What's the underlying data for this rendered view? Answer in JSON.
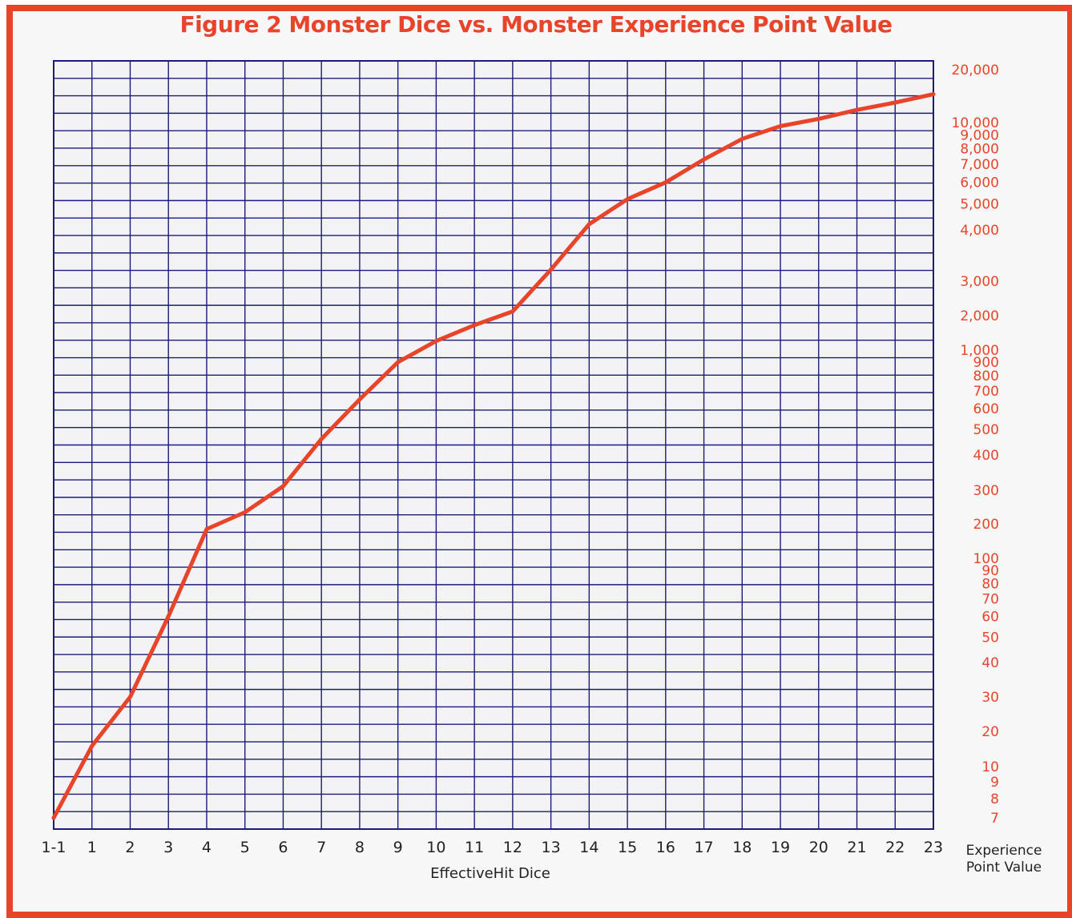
{
  "chart_data": {
    "type": "line",
    "title": "Figure 2 Monster Dice vs. Monster Experience Point Value",
    "xlabel": "EffectiveHit Dice",
    "ylabel": "Experience Point Value",
    "x_categories": [
      "1-1",
      "1",
      "2",
      "3",
      "4",
      "5",
      "6",
      "7",
      "8",
      "9",
      "10",
      "11",
      "12",
      "13",
      "14",
      "15",
      "16",
      "17",
      "18",
      "19",
      "20",
      "21",
      "22",
      "23"
    ],
    "y_ticks": [
      "7",
      "8",
      "9",
      "10",
      "20",
      "30",
      "40",
      "50",
      "60",
      "70",
      "80",
      "90",
      "100",
      "200",
      "300",
      "400",
      "500",
      "600",
      "700",
      "800",
      "900",
      "1,000",
      "2,000",
      "3,000",
      "4,000",
      "5,000",
      "6,000",
      "7,000",
      "8,000",
      "9,000",
      "10,000",
      "20,000"
    ],
    "series": [
      {
        "color": "#e8442a",
        "x": [
          "1-1",
          "1",
          "2",
          "3",
          "4",
          "5",
          "6",
          "7",
          "8",
          "9",
          "10",
          "11",
          "12",
          "13",
          "14",
          "15",
          "16",
          "17",
          "18",
          "19",
          "20",
          "21",
          "22",
          "23"
        ],
        "values": [
          7,
          15,
          30,
          60,
          180,
          230,
          310,
          460,
          650,
          900,
          1200,
          1650,
          2100,
          3200,
          4200,
          5200,
          6000,
          7300,
          8700,
          9700,
          10500,
          11800,
          13000,
          14500
        ]
      }
    ],
    "grid": true,
    "colors": {
      "frame": "#e8442a",
      "grid": "#1c1c78",
      "line": "#e8442a"
    }
  }
}
